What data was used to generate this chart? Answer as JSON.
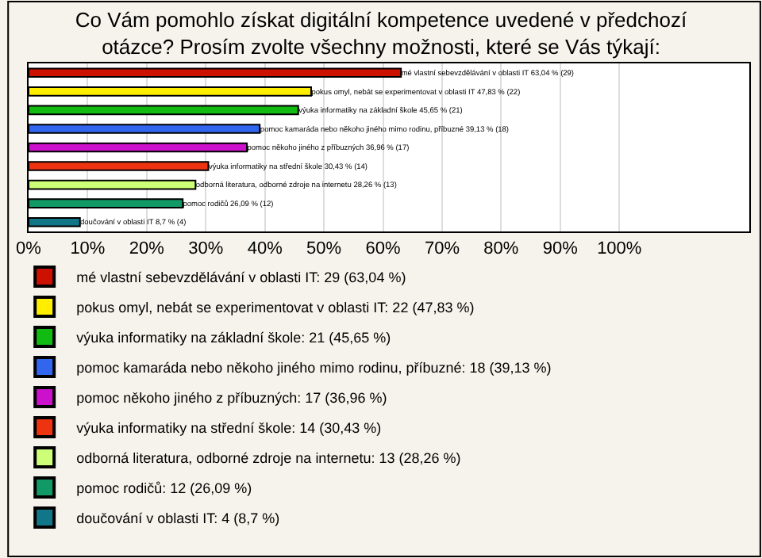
{
  "chart_data": {
    "type": "bar",
    "orientation": "horizontal",
    "title": "Co Vám pomohlo získat digitální kompetence uvedené v předchozí otázce? Prosím zvolte všechny možnosti, které se Vás týkají:",
    "categories": [
      null,
      null,
      null,
      null,
      null,
      null,
      null,
      null,
      null
    ],
    "xlim": [
      0,
      122
    ],
    "xticks": [
      {
        "value": 0,
        "label": "0%"
      },
      {
        "value": 10,
        "label": "10%"
      },
      {
        "value": 20,
        "label": "20%"
      },
      {
        "value": 30,
        "label": "30%"
      },
      {
        "value": 40,
        "label": "40%"
      },
      {
        "value": 50,
        "label": "50%"
      },
      {
        "value": 60,
        "label": "60%"
      },
      {
        "value": 70,
        "label": "70%"
      },
      {
        "value": 80,
        "label": "80%"
      },
      {
        "value": 90,
        "label": "90%"
      },
      {
        "value": 100,
        "label": "100%"
      }
    ],
    "grid": "x",
    "legend": "bottom",
    "tick_labels": "x",
    "series": [
      {
        "name": "mé vlastní sebevzdělávání v oblasti IT: 29 (63,04 %)",
        "color": "#cc1100",
        "values": [
          63.04,
          null,
          null,
          null,
          null,
          null,
          null,
          null,
          null
        ],
        "value_labels": [
          "mé vlastní sebevzdělávání v oblasti IT 63,04 % (29)",
          null,
          null,
          null,
          null,
          null,
          null,
          null,
          null
        ]
      },
      {
        "name": "pokus omyl, nebát se experimentovat v oblasti IT: 22 (47,83 %)",
        "color": "#ffee00",
        "values": [
          null,
          47.83,
          null,
          null,
          null,
          null,
          null,
          null,
          null
        ],
        "value_labels": [
          null,
          "pokus omyl, nebát se experimentovat v oblasti IT 47,83 % (22)",
          null,
          null,
          null,
          null,
          null,
          null,
          null
        ]
      },
      {
        "name": "výuka informatiky na základní škole: 21 (45,65 %)",
        "color": "#11bb11",
        "values": [
          null,
          null,
          45.65,
          null,
          null,
          null,
          null,
          null,
          null
        ],
        "value_labels": [
          null,
          null,
          "výuka informatiky na základní škole 45,65 % (21)",
          null,
          null,
          null,
          null,
          null,
          null
        ]
      },
      {
        "name": "pomoc kamaráda nebo někoho jiného mimo rodinu, příbuzné: 18 (39,13 %)",
        "color": "#3366ee",
        "values": [
          null,
          null,
          null,
          39.13,
          null,
          null,
          null,
          null,
          null
        ],
        "value_labels": [
          null,
          null,
          null,
          "pomoc kamaráda nebo někoho jiného mimo rodinu, příbuzné 39,13 % (18)",
          null,
          null,
          null,
          null,
          null
        ]
      },
      {
        "name": "pomoc někoho jiného z příbuzných: 17 (36,96 %)",
        "color": "#cc11cc",
        "values": [
          null,
          null,
          null,
          null,
          36.96,
          null,
          null,
          null,
          null
        ],
        "value_labels": [
          null,
          null,
          null,
          null,
          "pomoc někoho jiného z příbuzných 36,96 % (17)",
          null,
          null,
          null,
          null
        ]
      },
      {
        "name": "výuka informatiky na střední škole: 14 (30,43 %)",
        "color": "#ee3311",
        "values": [
          null,
          null,
          null,
          null,
          null,
          30.43,
          null,
          null,
          null
        ],
        "value_labels": [
          null,
          null,
          null,
          null,
          null,
          "výuka informatiky na střední škole 30,43 % (14)",
          null,
          null,
          null
        ]
      },
      {
        "name": "odborná literatura, odborné zdroje na internetu: 13 (28,26 %)",
        "color": "#ccff77",
        "values": [
          null,
          null,
          null,
          null,
          null,
          null,
          28.26,
          null,
          null
        ],
        "value_labels": [
          null,
          null,
          null,
          null,
          null,
          null,
          "odborná literatura, odborné zdroje na internetu 28,26 % (13)",
          null,
          null
        ]
      },
      {
        "name": "pomoc rodičů: 12 (26,09 %)",
        "color": "#119966",
        "values": [
          null,
          null,
          null,
          null,
          null,
          null,
          null,
          26.09,
          null
        ],
        "value_labels": [
          null,
          null,
          null,
          null,
          null,
          null,
          null,
          "pomoc rodičů 26,09 % (12)",
          null
        ]
      },
      {
        "name": "doučování v oblasti IT: 4 (8,7 %)",
        "color": "#117788",
        "values": [
          null,
          null,
          null,
          null,
          null,
          null,
          null,
          null,
          8.7
        ],
        "value_labels": [
          null,
          null,
          null,
          null,
          null,
          null,
          null,
          null,
          "doučování v oblasti IT 8,7 % (4)"
        ]
      }
    ]
  }
}
